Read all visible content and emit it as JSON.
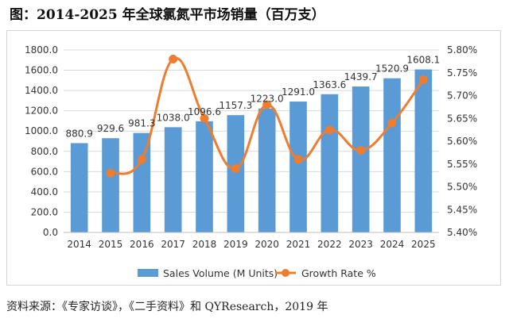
{
  "title": "图：2014-2025 年全球氯氮平市场销量（百万支）",
  "source": "资料来源：《专家访谈》，《二手资料》和 QYResearch，2019 年",
  "colors": {
    "bar": "#5B9BD5",
    "line": "#ED7D31",
    "grid": "#d9d9d9"
  },
  "chart_data": {
    "type": "bar",
    "categories": [
      "2014",
      "2015",
      "2016",
      "2017",
      "2018",
      "2019",
      "2020",
      "2021",
      "2022",
      "2023",
      "2024",
      "2025"
    ],
    "series": [
      {
        "name": "Sales Volume (M Units)",
        "type": "bar",
        "axis": "left",
        "values": [
          880.9,
          929.6,
          981.3,
          1038.0,
          1096.6,
          1157.3,
          1223.0,
          1291.0,
          1363.6,
          1439.7,
          1520.9,
          1608.1
        ],
        "labels": [
          "880.9",
          "929.6",
          "981.3",
          "1038.0",
          "1096.6",
          "1157.3",
          "1223.0",
          "1291.0",
          "1363.6",
          "1439.7",
          "1520.9",
          "1608.1"
        ]
      },
      {
        "name": "Growth Rate %",
        "type": "line",
        "axis": "right",
        "values": [
          null,
          5.53,
          5.56,
          5.78,
          5.65,
          5.54,
          5.68,
          5.56,
          5.625,
          5.58,
          5.64,
          5.735
        ]
      }
    ],
    "ylim": [
      0,
      1800
    ],
    "yticks": [
      "0.0",
      "200.0",
      "400.0",
      "600.0",
      "800.0",
      "1000.0",
      "1200.0",
      "1400.0",
      "1600.0",
      "1800.0"
    ],
    "y2lim": [
      5.4,
      5.8
    ],
    "y2ticks": [
      "5.40%",
      "5.45%",
      "5.50%",
      "5.55%",
      "5.60%",
      "5.65%",
      "5.70%",
      "5.75%",
      "5.80%"
    ],
    "grid": true,
    "legend_position": "bottom"
  }
}
